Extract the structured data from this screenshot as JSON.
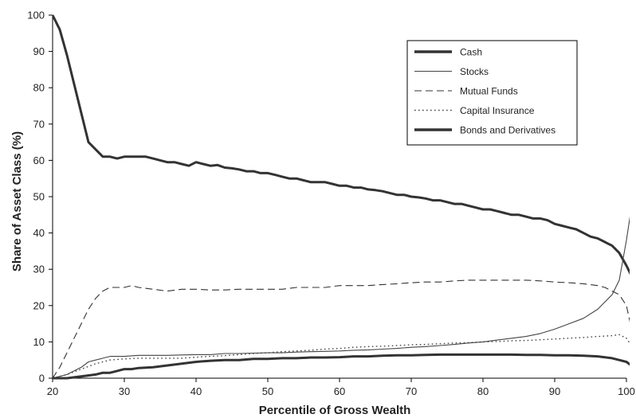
{
  "chart_data": {
    "type": "line",
    "title": "",
    "xlabel": "Percentile of Gross Wealth",
    "ylabel": "Share of Asset Class (%)",
    "xlim": [
      20,
      100
    ],
    "ylim": [
      0,
      100
    ],
    "xticks": [
      "20",
      "30",
      "40",
      "50",
      "60",
      "70",
      "80",
      "90",
      "100"
    ],
    "yticks": [
      "0",
      "10",
      "20",
      "30",
      "40",
      "50",
      "60",
      "70",
      "80",
      "90",
      "100"
    ],
    "grid": false,
    "legend_position": "top-right",
    "series": [
      {
        "name": "Cash",
        "color": "#333333",
        "dash": "solid",
        "weight": "heavy",
        "x": [
          20,
          21,
          22,
          23,
          24,
          25,
          26,
          27,
          28,
          29,
          30,
          31,
          32,
          33,
          34,
          35,
          36,
          37,
          38,
          39,
          40,
          41,
          42,
          43,
          44,
          45,
          46,
          47,
          48,
          49,
          50,
          51,
          52,
          53,
          54,
          55,
          56,
          57,
          58,
          59,
          60,
          61,
          62,
          63,
          64,
          65,
          66,
          67,
          68,
          69,
          70,
          71,
          72,
          73,
          74,
          75,
          76,
          77,
          78,
          79,
          80,
          81,
          82,
          83,
          84,
          85,
          86,
          87,
          88,
          89,
          90,
          91,
          92,
          93,
          94,
          95,
          96,
          97,
          98,
          99,
          100,
          101
        ],
        "y": [
          100,
          96,
          89,
          81,
          73,
          65,
          63,
          61,
          61,
          60.5,
          61,
          61,
          61,
          61,
          60.5,
          60,
          59.5,
          59.5,
          59,
          58.5,
          59.5,
          59,
          58.5,
          58.7,
          58,
          57.8,
          57.5,
          57,
          57,
          56.5,
          56.5,
          56,
          55.5,
          55,
          55,
          54.5,
          54,
          54,
          54,
          53.5,
          53,
          53,
          52.5,
          52.5,
          52,
          51.8,
          51.5,
          51,
          50.5,
          50.5,
          50,
          49.8,
          49.5,
          49,
          49,
          48.5,
          48,
          48,
          47.5,
          47,
          46.5,
          46.5,
          46,
          45.5,
          45,
          45,
          44.5,
          44,
          44,
          43.5,
          42.5,
          42,
          41.5,
          41,
          40,
          39,
          38.5,
          37.5,
          36.5,
          34.5,
          31,
          27
        ]
      },
      {
        "name": "Stocks",
        "color": "#444444",
        "dash": "solid",
        "weight": "thin",
        "x": [
          20,
          22,
          24,
          25,
          26,
          27,
          28,
          30,
          32,
          34,
          36,
          38,
          40,
          42,
          44,
          46,
          48,
          50,
          52,
          54,
          56,
          58,
          60,
          62,
          64,
          66,
          68,
          70,
          72,
          74,
          76,
          78,
          80,
          82,
          84,
          86,
          88,
          90,
          92,
          94,
          96,
          97,
          98,
          99,
          100,
          101
        ],
        "y": [
          0,
          1,
          3,
          4.5,
          5,
          5.5,
          6,
          6,
          6.3,
          6.3,
          6.3,
          6.4,
          6.5,
          6.5,
          6.8,
          6.8,
          6.9,
          7,
          7,
          7.2,
          7.3,
          7.4,
          7.5,
          7.7,
          7.8,
          8,
          8.2,
          8.5,
          8.7,
          9,
          9.3,
          9.7,
          10,
          10.5,
          11,
          11.5,
          12.3,
          13.5,
          15,
          16.5,
          19,
          21,
          23,
          27,
          38,
          51
        ]
      },
      {
        "name": "Mutual Funds",
        "color": "#333333",
        "dash": "dashed",
        "weight": "thin",
        "x": [
          20,
          21,
          22,
          23,
          24,
          25,
          26,
          27,
          28,
          29,
          30,
          31,
          32,
          34,
          36,
          38,
          40,
          42,
          44,
          46,
          48,
          50,
          52,
          54,
          56,
          58,
          60,
          62,
          64,
          66,
          68,
          70,
          72,
          74,
          76,
          78,
          80,
          82,
          84,
          86,
          88,
          90,
          92,
          94,
          96,
          97,
          98,
          99,
          100,
          101
        ],
        "y": [
          0,
          3,
          7,
          11,
          15,
          19,
          22,
          24,
          25,
          25,
          25,
          25.5,
          25,
          24.5,
          24,
          24.5,
          24.5,
          24.3,
          24.3,
          24.5,
          24.5,
          24.5,
          24.5,
          25,
          25,
          25,
          25.5,
          25.5,
          25.5,
          25.8,
          26,
          26.3,
          26.5,
          26.5,
          26.8,
          27,
          27,
          27,
          27,
          27,
          26.8,
          26.5,
          26.3,
          26,
          25.5,
          25,
          24,
          23,
          20,
          11
        ]
      },
      {
        "name": "Capital Insurance",
        "color": "#444444",
        "dash": "dotted",
        "weight": "thin",
        "x": [
          20,
          22,
          24,
          26,
          28,
          30,
          32,
          34,
          36,
          38,
          40,
          42,
          44,
          46,
          48,
          50,
          52,
          54,
          56,
          58,
          60,
          62,
          64,
          66,
          68,
          70,
          72,
          74,
          76,
          78,
          80,
          82,
          84,
          86,
          88,
          90,
          92,
          94,
          96,
          98,
          99,
          100,
          101
        ],
        "y": [
          0,
          1,
          2.5,
          4,
          5,
          5.3,
          5.5,
          5.5,
          5.5,
          5.5,
          5.8,
          6,
          6.2,
          6.5,
          6.8,
          7,
          7.3,
          7.5,
          7.7,
          8,
          8.2,
          8.5,
          8.7,
          8.8,
          9,
          9.2,
          9.3,
          9.5,
          9.7,
          9.8,
          10,
          10.1,
          10.3,
          10.4,
          10.6,
          10.8,
          11,
          11.2,
          11.5,
          11.7,
          12,
          11,
          8
        ]
      },
      {
        "name": "Bonds and Derivatives",
        "color": "#333333",
        "dash": "solid",
        "weight": "heavy",
        "x": [
          20,
          22,
          24,
          26,
          27,
          28,
          29,
          30,
          31,
          32,
          34,
          36,
          38,
          40,
          42,
          44,
          46,
          48,
          50,
          52,
          54,
          56,
          58,
          60,
          62,
          64,
          66,
          68,
          70,
          72,
          74,
          76,
          78,
          80,
          82,
          84,
          86,
          88,
          90,
          92,
          94,
          96,
          98,
          99,
          100,
          101
        ],
        "y": [
          0,
          0,
          0.5,
          1,
          1.5,
          1.5,
          2,
          2.5,
          2.5,
          2.8,
          3,
          3.5,
          4,
          4.5,
          4.8,
          5,
          5,
          5.3,
          5.3,
          5.5,
          5.5,
          5.7,
          5.7,
          5.8,
          6,
          6,
          6.2,
          6.3,
          6.3,
          6.4,
          6.5,
          6.5,
          6.5,
          6.5,
          6.5,
          6.5,
          6.4,
          6.4,
          6.3,
          6.3,
          6.2,
          6,
          5.5,
          5,
          4.5,
          3
        ]
      }
    ]
  }
}
